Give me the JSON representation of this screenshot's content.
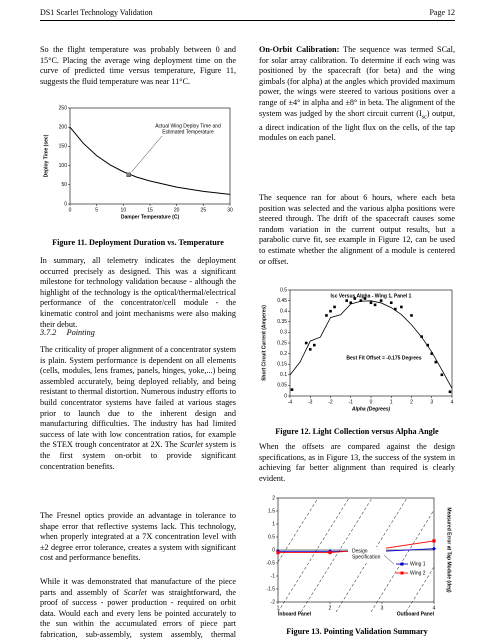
{
  "header": {
    "left": "DS1 Scarlet Technology Validation",
    "right": "Page 12"
  },
  "left_column": {
    "p1": "So the flight temperature was probably between 0 and 15°C. Placing the average wing deployment time on the curve of predicted time versus temperature, Figure 11, suggests the fluid temperature was near 11°C.",
    "p2": "In summary, all telemetry indicates the deployment occurred precisely as designed. This was a significant milestone for technology validation because - although the highlight of the technology is the optical/thermal/electrical performance of the concentrator/cell module - the kinematic control and joint mechanisms were also making their debut.",
    "heading_number": "3.7.2",
    "heading_title": "Pointing",
    "p3": [
      "The criticality of proper alignment of a concentrator system is plain. System performance is dependent on all elements (cells, modules, lens frames, panels, hinges, yoke,...) being assembled accurately, being deployed reliably, and being resistant to thermal distortion. Numerous industry efforts to build concentrator systems have failed at various stages prior to launch due to the inherent design and manufacturing difficulties. The industry has had limited success of late with low concentration ratios, for example the STEX trough concentrator at 2X. The ",
      "Scarlet",
      " system is the first system on-orbit to provide significant concentration benefits."
    ],
    "p4": "The Fresnel optics provide an advantage in tolerance to shape error that reflective systems lack. This technology, when properly integrated at a 7X concentration level with ±2 degree error tolerance, creates a system with significant cost and performance benefits.",
    "p5": [
      "While it was demonstrated that manufacture of the piece parts and assembly of ",
      "Scarlet",
      " was straightforward, the proof of success - power production - required on orbit data. Would each and every lens be pointed accurately to the sun within the accumulated errors of piece part fabrication, sub-assembly, system assembly, thermal distortion, spacecraft knowledge and pointing control? The eighth day of the mission provided an opportunity to find out."
    ]
  },
  "right_column": {
    "p6": [
      "On-Orbit Calibration:",
      " The sequence was termed SCal, for solar array calibration. To determine if each wing was positioned by the spacecraft (for beta) and the wing gimbals (for alpha) at the angles which provided maximum power, the wings were steered to various positions over a range of ±4° in alpha and ±8° in beta. The alignment of the system was judged by the short circuit current (I",
      "sc",
      ") output, a direct indication of the light flux on the cells, of the tap modules on each panel."
    ],
    "p7": "The sequence ran for about 6 hours, where each beta position was selected and the various alpha positions were steered through. The drift of the spacecraft causes some random variation in the current output results, but a parabolic curve fit, see example in Figure 12, can be used to estimate whether the alignment of a module is centered or offset.",
    "p8": "When the offsets are compared against the design specifications, as in Figure 13, the success of the system in achieving far better alignment than required is clearly evident."
  },
  "figures": [
    {
      "caption": "Figure 11.  Deployment Duration vs. Temperature",
      "chart": {
        "type": "line",
        "xlabel": "Damper Temperature (C)",
        "ylabel": "Deploy Time (sec)",
        "annotation": [
          "Actual Wing Deploy Time and",
          "Estimated Temperature"
        ],
        "x": [
          0,
          2.5,
          5,
          7.5,
          10,
          12.5,
          15,
          20,
          25,
          30
        ],
        "values": [
          200,
          158,
          126,
          102,
          84,
          70,
          60,
          44,
          33,
          25
        ],
        "color": "#000000",
        "actual": {
          "x": 11,
          "y": 76,
          "color": "#808080"
        },
        "xlim": [
          0,
          30
        ],
        "ylim": [
          0,
          250
        ],
        "xticks": [
          0,
          5,
          10,
          15,
          20,
          25,
          30
        ],
        "yticks": [
          0,
          50,
          100,
          150,
          200,
          250
        ]
      }
    },
    {
      "caption": "Figure 12.  Light Collection versus Alpha Angle",
      "chart": {
        "type": "scatter",
        "title": "Isc Versus Alpha - Wing 1, Panel 1",
        "xlabel": "Alpha (Degrees)",
        "ylabel": "Short Circuit Current (Amperes)",
        "annotation": "Best Fit Offset = -0.175 Degrees",
        "points": {
          "x": [
            -3.9,
            -3.2,
            -3,
            -2.8,
            -2.2,
            -2,
            -1.8,
            -1.2,
            -1,
            -0.8,
            -0.5,
            -0.3,
            0,
            0.2,
            0.5,
            1,
            1.2,
            1.5,
            2,
            2.5,
            2.8,
            3,
            3.2,
            3.5,
            3.9
          ],
          "y": [
            0.03,
            0.25,
            0.22,
            0.24,
            0.38,
            0.4,
            0.42,
            0.45,
            0.44,
            0.46,
            0.45,
            0.46,
            0.44,
            0.43,
            0.45,
            0.44,
            0.41,
            0.42,
            0.38,
            0.28,
            0.24,
            0.2,
            0.16,
            0.1,
            0.02
          ]
        },
        "fit": {
          "x": [
            -4,
            -3.5,
            -3,
            -2.5,
            -2,
            -1.5,
            -1,
            -0.5,
            0,
            0.5,
            1,
            1.5,
            2,
            2.5,
            3,
            3.5,
            4
          ],
          "y": [
            0.099,
            0.161,
            0.259,
            0.278,
            0.37,
            0.383,
            0.434,
            0.447,
            0.449,
            0.439,
            0.417,
            0.384,
            0.336,
            0.278,
            0.208,
            0.123,
            0.036
          ]
        },
        "color": "#000000",
        "xlim": [
          -4,
          4
        ],
        "ylim": [
          0,
          0.5
        ],
        "xticks": [
          -4,
          -3,
          -2,
          -1,
          0,
          1,
          2,
          3,
          4
        ],
        "yticks": [
          0,
          0.05,
          0.1,
          0.15,
          0.2,
          0.25,
          0.3,
          0.35,
          0.4,
          0.45,
          0.5
        ]
      }
    },
    {
      "caption": "Figure 13.  Pointing Validation Summary",
      "chart": {
        "type": "line",
        "ylabel": "Measured Error at Tap Module (deg)",
        "spec_label": [
          "Design",
          "Specification"
        ],
        "x_end_labels": [
          "Inboard Panel",
          "Outboard Panel"
        ],
        "x": [
          1,
          2,
          3,
          4
        ],
        "series": [
          {
            "name": "Wing 1",
            "color": "#0000cc",
            "values": [
              -0.05,
              -0.05,
              -0.05,
              0.05
            ]
          },
          {
            "name": "Wing 2",
            "color": "#ff0000",
            "values": [
              -0.1,
              -0.1,
              0.05,
              0.35
            ]
          }
        ],
        "xlim": [
          1,
          4
        ],
        "ylim": [
          -2,
          2
        ],
        "xticks": [
          1,
          2,
          3,
          4
        ],
        "yticks": [
          -2,
          -1.5,
          -1,
          -0.5,
          0,
          0.5,
          1,
          1.5,
          2
        ]
      }
    }
  ]
}
